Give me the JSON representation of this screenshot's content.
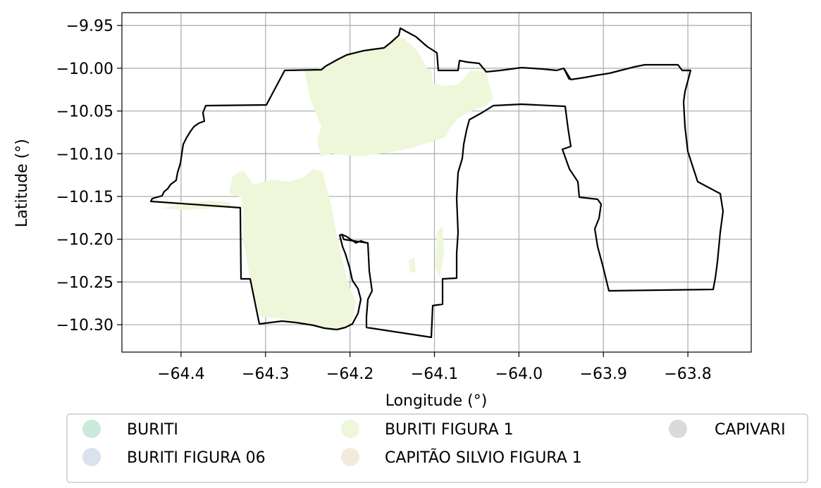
{
  "map": {
    "xlabel": "Longitude (°)",
    "ylabel": "Latitude (°)",
    "xlim": [
      -64.47,
      -63.725
    ],
    "ylim": [
      -10.332,
      -9.935
    ],
    "grid": true,
    "x_ticks": [
      {
        "value": -64.4,
        "label": "−64.4"
      },
      {
        "value": -64.3,
        "label": "−64.3"
      },
      {
        "value": -64.2,
        "label": "−64.2"
      },
      {
        "value": -64.1,
        "label": "−64.1"
      },
      {
        "value": -64.0,
        "label": "−64.0"
      },
      {
        "value": -63.9,
        "label": "−63.9"
      },
      {
        "value": -63.8,
        "label": "−63.8"
      }
    ],
    "y_ticks": [
      {
        "value": -9.95,
        "label": "−9.95"
      },
      {
        "value": -10.0,
        "label": "−10.00"
      },
      {
        "value": -10.05,
        "label": "−10.05"
      },
      {
        "value": -10.1,
        "label": "−10.10"
      },
      {
        "value": -10.15,
        "label": "−10.15"
      },
      {
        "value": -10.2,
        "label": "−10.20"
      },
      {
        "value": -10.25,
        "label": "−10.25"
      },
      {
        "value": -10.3,
        "label": "−10.30"
      }
    ],
    "boundary_color": "#000000",
    "fill_color": "#eef7d9"
  },
  "legend": {
    "placement": "below",
    "items": [
      {
        "label": "BURITI",
        "color": "#cbeadb"
      },
      {
        "label": "BURITI FIGURA 1",
        "color": "#eef7d9"
      },
      {
        "label": "CAPIVARI",
        "color": "#dadada"
      },
      {
        "label": "BURITI FIGURA 06",
        "color": "#dce1ef"
      },
      {
        "label": "CAPITÃO SILVIO FIGURA 1",
        "color": "#f4eadc"
      }
    ]
  }
}
